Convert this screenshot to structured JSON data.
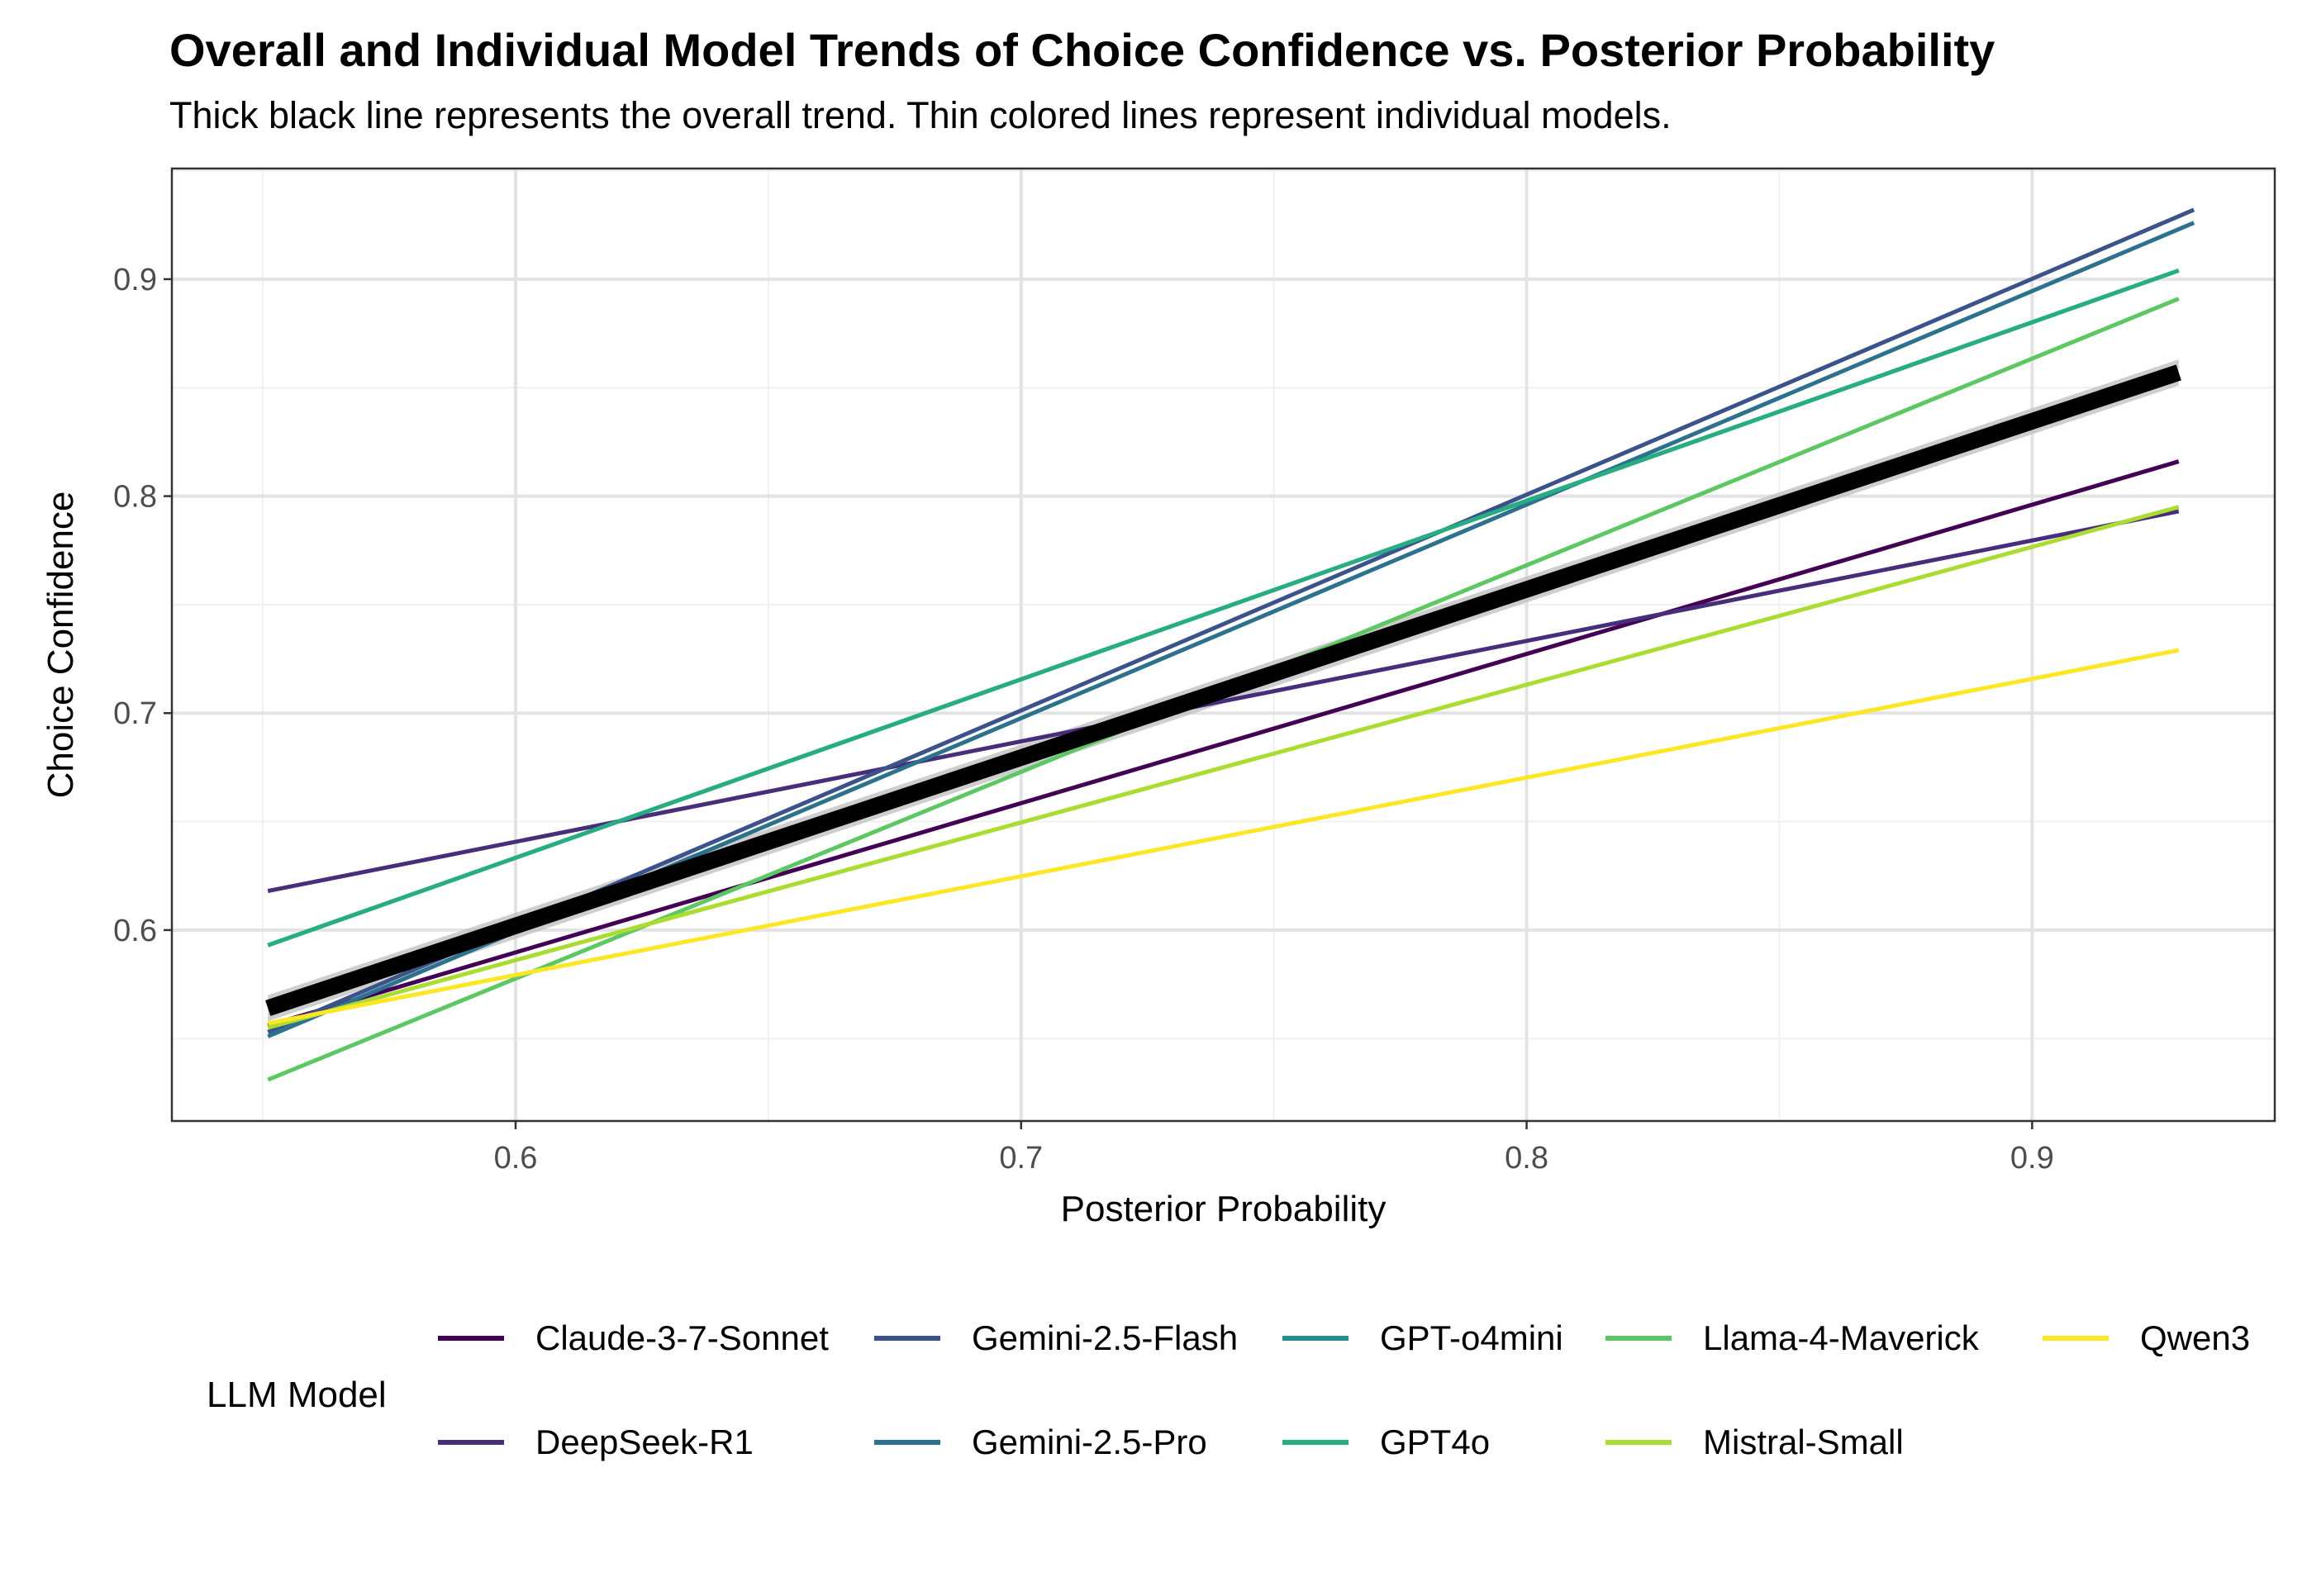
{
  "chart_data": {
    "type": "line",
    "title": "Overall and Individual Model Trends of Choice Confidence vs. Posterior Probability",
    "subtitle": "Thick black line represents the overall trend. Thin colored lines represent individual models.",
    "xlabel": "Posterior Probability",
    "ylabel": "Choice Confidence",
    "xlim": [
      0.532,
      0.948
    ],
    "ylim": [
      0.512,
      0.951
    ],
    "xticks": [
      0.6,
      0.7,
      0.8,
      0.9
    ],
    "yticks": [
      0.6,
      0.7,
      0.8,
      0.9
    ],
    "xtick_labels": [
      "0.6",
      "0.7",
      "0.8",
      "0.9"
    ],
    "ytick_labels": [
      "0.6",
      "0.7",
      "0.8",
      "0.9"
    ],
    "grid": true,
    "legend_title": "LLM Model",
    "legend_position": "bottom",
    "overall": {
      "name": "Overall",
      "color": "#000000",
      "x": [
        0.551,
        0.929
      ],
      "y": [
        0.564,
        0.857
      ],
      "ci_halfwidth": [
        0.006,
        0.006
      ]
    },
    "series": [
      {
        "name": "Claude-3-7-Sonnet",
        "color": "#440154",
        "x": [
          0.551,
          0.929
        ],
        "y": [
          0.556,
          0.816
        ]
      },
      {
        "name": "DeepSeek-R1",
        "color": "#472D7B",
        "x": [
          0.551,
          0.929
        ],
        "y": [
          0.618,
          0.793
        ]
      },
      {
        "name": "Gemini-2.5-Flash",
        "color": "#3B528B",
        "x": [
          0.551,
          0.932
        ],
        "y": [
          0.553,
          0.932
        ]
      },
      {
        "name": "Gemini-2.5-Pro",
        "color": "#2C728E",
        "x": [
          0.551,
          0.932
        ],
        "y": [
          0.551,
          0.926
        ]
      },
      {
        "name": "GPT-o4mini",
        "color": "#21908C",
        "x": [
          0.551,
          0.929
        ],
        "y": [
          0.593,
          0.904
        ]
      },
      {
        "name": "GPT4o",
        "color": "#27AD81",
        "x": [
          0.551,
          0.929
        ],
        "y": [
          0.593,
          0.904
        ]
      },
      {
        "name": "Llama-4-Maverick",
        "color": "#5DC863",
        "x": [
          0.551,
          0.929
        ],
        "y": [
          0.531,
          0.891
        ]
      },
      {
        "name": "Mistral-Small",
        "color": "#AADC32",
        "x": [
          0.551,
          0.929
        ],
        "y": [
          0.555,
          0.795
        ]
      },
      {
        "name": "Qwen3",
        "color": "#FDE725",
        "x": [
          0.551,
          0.929
        ],
        "y": [
          0.557,
          0.729
        ]
      }
    ]
  }
}
